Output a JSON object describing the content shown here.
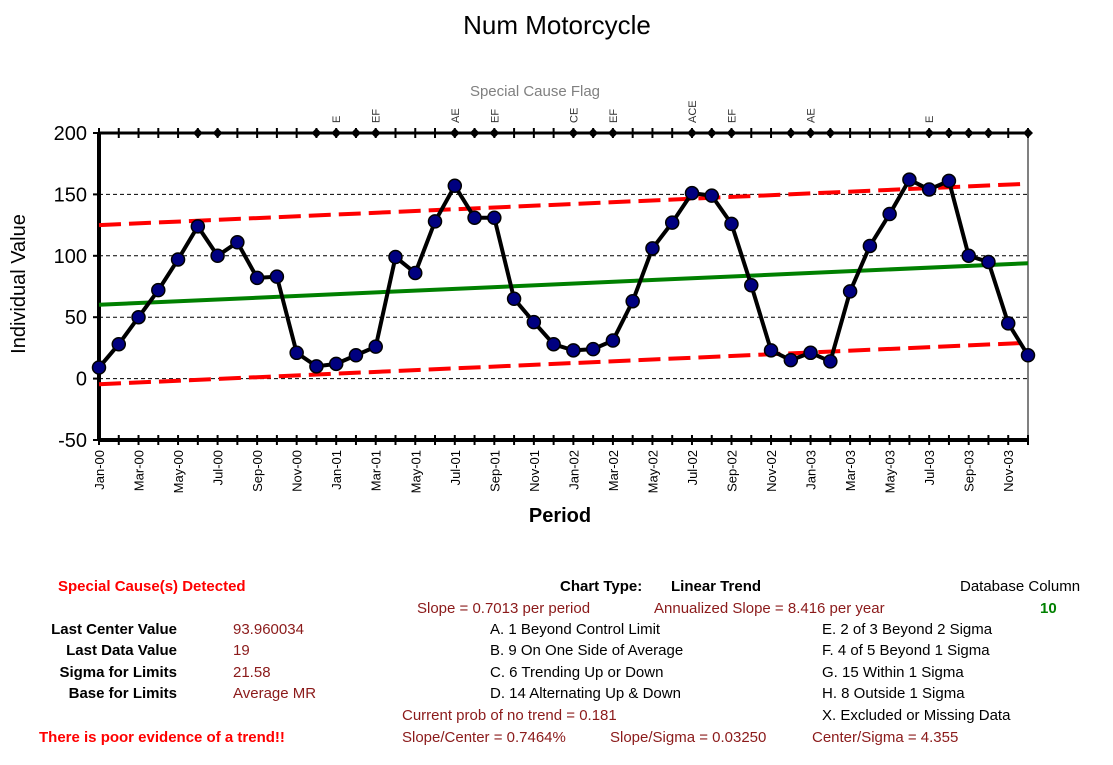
{
  "chart_data": {
    "type": "line",
    "title": "Num Motorcycle",
    "subtitle": "Special Cause Flag",
    "xlabel": "Period",
    "ylabel": "Individual Value",
    "ylim": [
      -50,
      200
    ],
    "yticks": [
      "200",
      "150",
      "100",
      "50",
      "0",
      "-50"
    ],
    "grid": true,
    "x": [
      "Jan-00",
      "Feb-00",
      "Mar-00",
      "Apr-00",
      "May-00",
      "Jun-00",
      "Jul-00",
      "Aug-00",
      "Sep-00",
      "Oct-00",
      "Nov-00",
      "Dec-00",
      "Jan-01",
      "Feb-01",
      "Mar-01",
      "Apr-01",
      "May-01",
      "Jun-01",
      "Jul-01",
      "Aug-01",
      "Sep-01",
      "Oct-01",
      "Nov-01",
      "Dec-01",
      "Jan-02",
      "Feb-02",
      "Mar-02",
      "Apr-02",
      "May-02",
      "Jun-02",
      "Jul-02",
      "Aug-02",
      "Sep-02",
      "Oct-02",
      "Nov-02",
      "Dec-02",
      "Jan-03",
      "Feb-03",
      "Mar-03",
      "Apr-03",
      "May-03",
      "Jun-03",
      "Jul-03",
      "Aug-03",
      "Sep-03",
      "Oct-03",
      "Nov-03",
      "Dec-03"
    ],
    "xtick_labels": [
      "Jan-00",
      "Mar-00",
      "May-00",
      "Jul-00",
      "Sep-00",
      "Nov-00",
      "Jan-01",
      "Mar-01",
      "May-01",
      "Jul-01",
      "Sep-01",
      "Nov-01",
      "Jan-02",
      "Mar-02",
      "May-02",
      "Jul-02",
      "Sep-02",
      "Nov-02",
      "Jan-03",
      "Mar-03",
      "May-03",
      "Jul-03",
      "Sep-03",
      "Nov-03"
    ],
    "series": [
      {
        "type": "line-marker",
        "color": "#000000",
        "marker_color": "#000080",
        "values": [
          9,
          28,
          50,
          72,
          97,
          124,
          100,
          111,
          82,
          83,
          21,
          10,
          12,
          19,
          26,
          99,
          86,
          128,
          157,
          131,
          131,
          65,
          46,
          28,
          23,
          24,
          31,
          63,
          106,
          127,
          151,
          149,
          126,
          76,
          23,
          15,
          21,
          14,
          71,
          108,
          134,
          162,
          154,
          161,
          100,
          95,
          45,
          19
        ]
      },
      {
        "type": "line",
        "color": "#008000",
        "values_start_end": [
          60.1,
          93.96
        ]
      },
      {
        "type": "dashed",
        "color": "#ff0000",
        "values_start_end": [
          125.0,
          158.7
        ]
      },
      {
        "type": "dashed",
        "color": "#ff0000",
        "values_start_end": [
          -4.6,
          29.2
        ]
      }
    ],
    "flags": [
      {
        "period": "Jan-01",
        "text": "E"
      },
      {
        "period": "Mar-01",
        "text": "EF"
      },
      {
        "period": "Jul-01",
        "text": "AE"
      },
      {
        "period": "Sep-01",
        "text": "EF"
      },
      {
        "period": "Jan-02",
        "text": "CE"
      },
      {
        "period": "Mar-02",
        "text": "EF"
      },
      {
        "period": "Jul-02",
        "text": "ACE"
      },
      {
        "period": "Sep-02",
        "text": "EF"
      },
      {
        "period": "Jan-03",
        "text": "AE"
      },
      {
        "period": "Jul-03",
        "text": "E"
      }
    ],
    "flag_diamonds": [
      "Jun-00",
      "Jul-00",
      "Dec-00",
      "Jan-01",
      "Feb-01",
      "Mar-01",
      "Jul-01",
      "Aug-01",
      "Sep-01",
      "Jan-02",
      "Feb-02",
      "Mar-02",
      "Jul-02",
      "Aug-02",
      "Sep-02",
      "Dec-02",
      "Jan-03",
      "Feb-03",
      "Jul-03",
      "Aug-03",
      "Sep-03",
      "Oct-03",
      "Dec-03"
    ]
  },
  "colors": {
    "data_line": "#000000",
    "marker": "#000080",
    "center": "#008000",
    "limits": "#ff0000",
    "text_red": "#ff0000",
    "text_dark_red": "#8b1a1a"
  },
  "panel": {
    "special_cause": "Special Cause(s) Detected",
    "last_center_label": "Last Center Value",
    "last_center_value": "93.960034",
    "last_data_label": "Last Data Value",
    "last_data_value": "19",
    "sigma_label": "Sigma for Limits",
    "sigma_value": "21.58",
    "base_label": "Base for Limits",
    "base_value": "Average MR",
    "evidence": "There is poor evidence of a trend!!",
    "chart_type_label": "Chart Type:",
    "chart_type_value": "Linear Trend",
    "slope": "Slope = 0.7013 per period",
    "annualized": "Annualized Slope = 8.416 per year",
    "rule_a": "A.  1 Beyond Control Limit",
    "rule_b": "B.  9 On One Side of Average",
    "rule_c": "C.  6 Trending Up or Down",
    "rule_d": "D.  14 Alternating  Up & Down",
    "prob": "Current prob of no trend = 0.181",
    "slope_center": "Slope/Center = 0.7464%",
    "slope_sigma": "Slope/Sigma = 0.03250",
    "center_sigma": "Center/Sigma = 4.355",
    "db_column_label": "Database Column",
    "db_column_value": "10",
    "rule_e": "E.  2 of 3 Beyond 2 Sigma",
    "rule_f": "F.  4 of 5 Beyond 1 Sigma",
    "rule_g": "G.  15 Within 1 Sigma",
    "rule_h": "H.  8 Outside 1 Sigma",
    "rule_x": "X.  Excluded or Missing Data"
  }
}
